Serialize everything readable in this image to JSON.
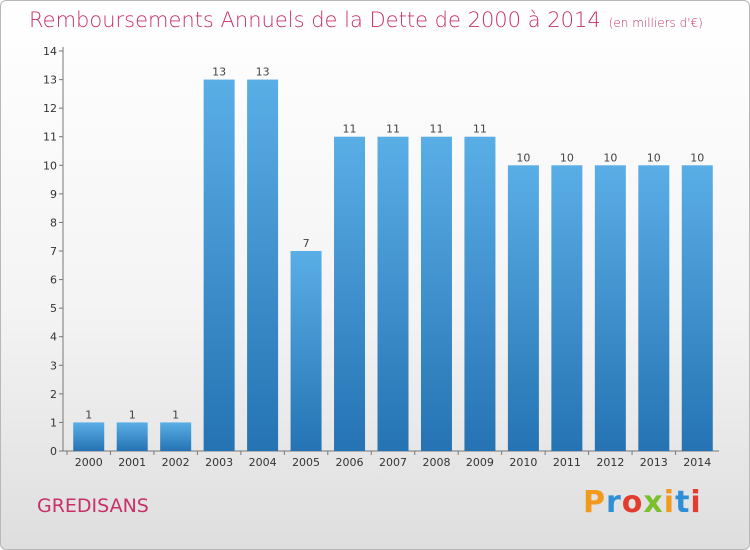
{
  "title": "Remboursements Annuels de la Dette de 2000 à 2014",
  "unit": "(en milliers d'€)",
  "commune": "GREDISANS",
  "logo": "Proxiti",
  "colors": {
    "bar_top": "#5aaee6",
    "bar_bottom": "#2573b3",
    "title": "#c8306a"
  },
  "chart_data": {
    "type": "bar",
    "categories": [
      "2000",
      "2001",
      "2002",
      "2003",
      "2004",
      "2005",
      "2006",
      "2007",
      "2008",
      "2009",
      "2010",
      "2011",
      "2012",
      "2013",
      "2014"
    ],
    "values": [
      1,
      1,
      1,
      13,
      13,
      7,
      11,
      11,
      11,
      11,
      10,
      10,
      10,
      10,
      10
    ],
    "ylim": [
      0,
      14
    ],
    "yticks": [
      0,
      1,
      2,
      3,
      4,
      5,
      6,
      7,
      8,
      9,
      10,
      11,
      12,
      13,
      14
    ],
    "grid": false,
    "title": "Remboursements Annuels de la Dette de 2000 à 2014",
    "xlabel": "",
    "ylabel": ""
  }
}
